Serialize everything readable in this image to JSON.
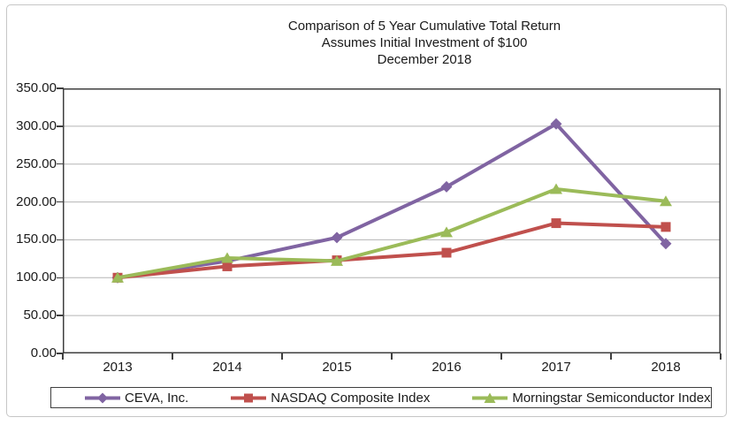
{
  "title": {
    "line1": "Comparison of 5 Year Cumulative Total Return",
    "line2": "Assumes Initial Investment of $100",
    "line3": "December 2018"
  },
  "chart_data": {
    "type": "line",
    "title": "Comparison of 5 Year Cumulative Total Return",
    "subtitle": "Assumes Initial Investment of $100",
    "period_label": "December 2018",
    "categories": [
      "2013",
      "2014",
      "2015",
      "2016",
      "2017",
      "2018"
    ],
    "series": [
      {
        "name": "CEVA, Inc.",
        "color": "#8064A2",
        "marker": "diamond",
        "values": [
          100,
          122,
          153,
          220,
          303,
          145
        ]
      },
      {
        "name": "NASDAQ Composite Index",
        "color": "#C0504D",
        "marker": "square",
        "values": [
          100,
          115,
          123,
          133,
          172,
          167
        ]
      },
      {
        "name": "Morningstar Semiconductor Index",
        "color": "#9BBB59",
        "marker": "triangle",
        "values": [
          100,
          126,
          122,
          160,
          217,
          201
        ]
      }
    ],
    "ylim": [
      0,
      350
    ],
    "y_tick_step": 50,
    "y_tick_labels": [
      "0.00",
      "50.00",
      "100.00",
      "150.00",
      "200.00",
      "250.00",
      "300.00",
      "350.00"
    ],
    "grid": true,
    "legend_position": "bottom",
    "gridline_color": "#b5b5b5",
    "axis_color": "#3f3f3f",
    "frame_border_color": "#c6c6c6",
    "background_color": "#ffffff"
  }
}
